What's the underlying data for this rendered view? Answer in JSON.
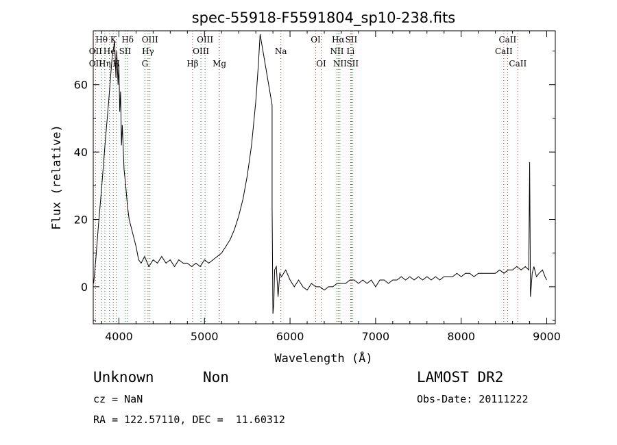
{
  "chart_data": {
    "type": "line",
    "title": "spec-55918-F5591804_sp10-238.fits",
    "xlabel": "Wavelength (Å)",
    "ylabel": "Flux (relative)",
    "xlim": [
      3700,
      9100
    ],
    "ylim": [
      -11,
      76
    ],
    "xticks": [
      4000,
      5000,
      6000,
      7000,
      8000,
      9000
    ],
    "yticks": [
      0,
      20,
      40,
      60
    ],
    "grid": false,
    "series": [
      {
        "points": [
          [
            3705,
            1
          ],
          [
            3730,
            8
          ],
          [
            3760,
            18
          ],
          [
            3800,
            30
          ],
          [
            3840,
            43
          ],
          [
            3880,
            55
          ],
          [
            3920,
            68
          ],
          [
            3950,
            73
          ],
          [
            3965,
            62
          ],
          [
            3975,
            70
          ],
          [
            3990,
            60
          ],
          [
            4000,
            66
          ],
          [
            4010,
            52
          ],
          [
            4020,
            58
          ],
          [
            4030,
            42
          ],
          [
            4040,
            48
          ],
          [
            4060,
            35
          ],
          [
            4080,
            30
          ],
          [
            4100,
            24
          ],
          [
            4120,
            20
          ],
          [
            4150,
            17
          ],
          [
            4180,
            14
          ],
          [
            4200,
            12
          ],
          [
            4230,
            8
          ],
          [
            4260,
            7
          ],
          [
            4300,
            9
          ],
          [
            4350,
            6
          ],
          [
            4400,
            8
          ],
          [
            4450,
            7
          ],
          [
            4500,
            9
          ],
          [
            4550,
            7
          ],
          [
            4600,
            8
          ],
          [
            4650,
            6
          ],
          [
            4700,
            8
          ],
          [
            4750,
            7
          ],
          [
            4800,
            7
          ],
          [
            4850,
            6
          ],
          [
            4900,
            7
          ],
          [
            4950,
            6
          ],
          [
            5000,
            8
          ],
          [
            5050,
            7
          ],
          [
            5100,
            8
          ],
          [
            5150,
            9
          ],
          [
            5200,
            10
          ],
          [
            5250,
            12
          ],
          [
            5300,
            14
          ],
          [
            5350,
            17
          ],
          [
            5400,
            21
          ],
          [
            5450,
            26
          ],
          [
            5500,
            33
          ],
          [
            5550,
            42
          ],
          [
            5600,
            55
          ],
          [
            5630,
            66
          ],
          [
            5650,
            75
          ],
          [
            5790,
            54
          ],
          [
            5790,
            24
          ],
          [
            5800,
            -8
          ],
          [
            5810,
            -5
          ],
          [
            5820,
            5
          ],
          [
            5840,
            6
          ],
          [
            5860,
            -3
          ],
          [
            5880,
            4
          ],
          [
            5900,
            3
          ],
          [
            5950,
            5
          ],
          [
            6000,
            2
          ],
          [
            6050,
            0
          ],
          [
            6100,
            2
          ],
          [
            6150,
            0
          ],
          [
            6200,
            -1
          ],
          [
            6250,
            1
          ],
          [
            6300,
            0
          ],
          [
            6350,
            0
          ],
          [
            6400,
            -1
          ],
          [
            6450,
            0
          ],
          [
            6500,
            0
          ],
          [
            6550,
            1
          ],
          [
            6600,
            1
          ],
          [
            6650,
            1
          ],
          [
            6700,
            2
          ],
          [
            6750,
            2
          ],
          [
            6800,
            1
          ],
          [
            6850,
            2
          ],
          [
            6900,
            1
          ],
          [
            6950,
            2
          ],
          [
            7000,
            0
          ],
          [
            7050,
            2
          ],
          [
            7100,
            2
          ],
          [
            7150,
            1
          ],
          [
            7200,
            2
          ],
          [
            7250,
            2
          ],
          [
            7300,
            3
          ],
          [
            7350,
            2
          ],
          [
            7400,
            3
          ],
          [
            7450,
            2
          ],
          [
            7500,
            3
          ],
          [
            7550,
            2
          ],
          [
            7600,
            3
          ],
          [
            7650,
            2
          ],
          [
            7700,
            3
          ],
          [
            7750,
            2
          ],
          [
            7800,
            3
          ],
          [
            7850,
            3
          ],
          [
            7900,
            3
          ],
          [
            7950,
            4
          ],
          [
            8000,
            3
          ],
          [
            8050,
            4
          ],
          [
            8100,
            4
          ],
          [
            8150,
            3
          ],
          [
            8200,
            4
          ],
          [
            8250,
            4
          ],
          [
            8300,
            4
          ],
          [
            8350,
            4
          ],
          [
            8400,
            4
          ],
          [
            8450,
            5
          ],
          [
            8500,
            4
          ],
          [
            8550,
            5
          ],
          [
            8600,
            5
          ],
          [
            8650,
            6
          ],
          [
            8700,
            5
          ],
          [
            8750,
            6
          ],
          [
            8790,
            5
          ],
          [
            8800,
            37
          ],
          [
            8810,
            -3
          ],
          [
            8830,
            4
          ],
          [
            8850,
            6
          ],
          [
            8880,
            3
          ],
          [
            8910,
            4
          ],
          [
            8950,
            5
          ],
          [
            8980,
            3
          ],
          [
            9000,
            2
          ]
        ]
      }
    ],
    "line_labels": [
      {
        "text": "Hθ",
        "x": 3798,
        "row": 0
      },
      {
        "text": "OII",
        "x": 3727,
        "row": 1
      },
      {
        "text": "OII",
        "x": 3727,
        "row": 2
      },
      {
        "text": "K",
        "x": 3934,
        "row": 0
      },
      {
        "text": "He",
        "x": 3889,
        "row": 1
      },
      {
        "text": "Hη",
        "x": 3835,
        "row": 2
      },
      {
        "text": "H",
        "x": 3969,
        "row": 2
      },
      {
        "text": "Hδ",
        "x": 4102,
        "row": 0
      },
      {
        "text": "SII",
        "x": 4072,
        "row": 1
      },
      {
        "text": "OIII",
        "x": 4363,
        "row": 0
      },
      {
        "text": "Hγ",
        "x": 4340,
        "row": 1
      },
      {
        "text": "G",
        "x": 4304,
        "row": 2
      },
      {
        "text": "OIII",
        "x": 5007,
        "row": 0
      },
      {
        "text": "OIII",
        "x": 4959,
        "row": 1
      },
      {
        "text": "Hβ",
        "x": 4861,
        "row": 2
      },
      {
        "text": "Mg",
        "x": 5175,
        "row": 2
      },
      {
        "text": "Na",
        "x": 5893,
        "row": 1
      },
      {
        "text": "OI",
        "x": 6300,
        "row": 0
      },
      {
        "text": "OI",
        "x": 6364,
        "row": 2
      },
      {
        "text": "Hα",
        "x": 6563,
        "row": 0
      },
      {
        "text": "SII",
        "x": 6716,
        "row": 0
      },
      {
        "text": "NII",
        "x": 6548,
        "row": 1
      },
      {
        "text": "Li",
        "x": 6708,
        "row": 1
      },
      {
        "text": "NII",
        "x": 6583,
        "row": 2
      },
      {
        "text": "SII",
        "x": 6731,
        "row": 2
      },
      {
        "text": "CaII",
        "x": 8542,
        "row": 0
      },
      {
        "text": "CaII",
        "x": 8498,
        "row": 1
      },
      {
        "text": "CaII",
        "x": 8662,
        "row": 2
      }
    ],
    "line_markers": [
      3727,
      3798,
      3835,
      3889,
      3934,
      3969,
      4072,
      4102,
      4304,
      4340,
      4363,
      4861,
      4959,
      5007,
      5175,
      5893,
      6300,
      6364,
      6548,
      6563,
      6583,
      6708,
      6716,
      6731,
      8498,
      8542,
      8662
    ],
    "colors": {
      "line": "#000000",
      "marker": "#cc2222",
      "axis": "#000000"
    }
  },
  "info": {
    "object_class": "Unknown",
    "object_subclass": "Non",
    "survey": "LAMOST DR2",
    "cz": "cz = NaN",
    "obs_date": "Obs-Date: 20111222",
    "radec": "RA = 122.57110, DEC =  11.60312"
  }
}
